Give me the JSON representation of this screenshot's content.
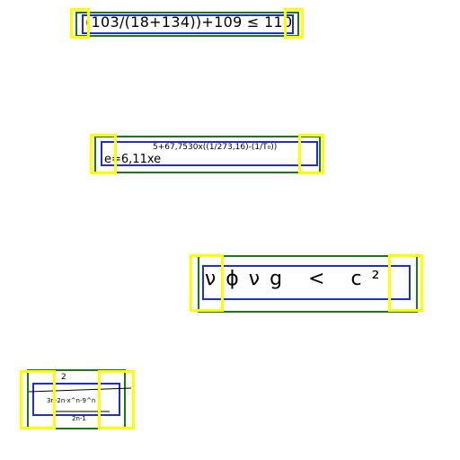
{
  "colors": {
    "expression_box": "#1a7a1a",
    "inner_box": "#1f2ed8",
    "end_marker": "#ffff00",
    "ink": "#000000"
  },
  "expressions": [
    {
      "text": "(103/(18+134))+109 ≤ 110"
    },
    {
      "main": "e=6,11xe",
      "exponent": "5+67,7530x((1/273,16)-(1/T₀))"
    },
    {
      "text": "νϕνg < c²"
    },
    {
      "top": "2",
      "middle": "3n-2n·x^n-9^n",
      "bottom": "2n-1"
    }
  ]
}
